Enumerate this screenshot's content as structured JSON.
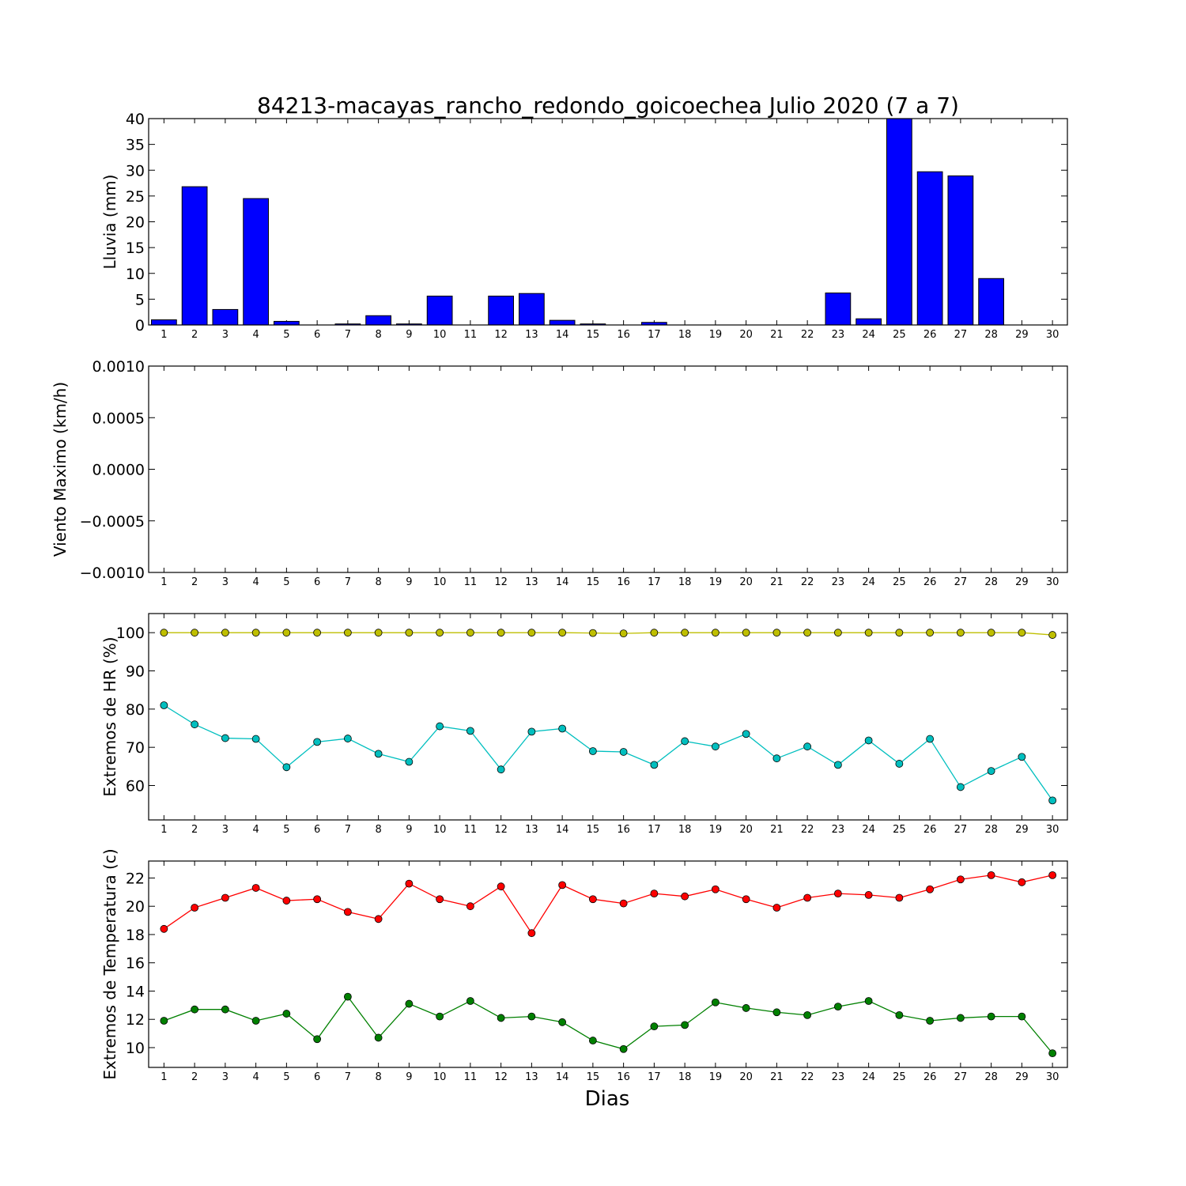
{
  "figure_title": "84213-macayas_rancho_redondo_goicoechea Julio 2020  (7 a 7)",
  "xlabel": "Dias",
  "colors": {
    "rain": "#0000ff",
    "hr_max": "#bfbf00",
    "hr_min": "#00bfbf",
    "temp_max": "#ff0000",
    "temp_min": "#008000"
  },
  "chart_data": [
    {
      "type": "bar",
      "ylabel": "Lluvia (mm)",
      "categories": [
        "1",
        "2",
        "3",
        "4",
        "5",
        "6",
        "7",
        "8",
        "9",
        "10",
        "11",
        "12",
        "13",
        "14",
        "15",
        "16",
        "17",
        "18",
        "19",
        "20",
        "21",
        "22",
        "23",
        "24",
        "25",
        "26",
        "27",
        "28",
        "29",
        "30"
      ],
      "ylim": [
        0,
        40
      ],
      "yticks": [
        "0",
        "5",
        "10",
        "15",
        "20",
        "25",
        "30",
        "35",
        "40"
      ],
      "series": [
        {
          "values": [
            1.0,
            26.8,
            3.0,
            24.5,
            0.7,
            0.0,
            0.2,
            1.8,
            0.2,
            5.6,
            0.0,
            5.6,
            6.1,
            0.9,
            0.2,
            0.0,
            0.5,
            0.0,
            0.0,
            0.0,
            0.0,
            0.0,
            6.2,
            1.2,
            40.0,
            29.7,
            28.9,
            9.0,
            0.0,
            0.0
          ]
        }
      ]
    },
    {
      "type": "line",
      "ylabel": "Viento Maximo (km/h)",
      "categories": [
        "1",
        "2",
        "3",
        "4",
        "5",
        "6",
        "7",
        "8",
        "9",
        "10",
        "11",
        "12",
        "13",
        "14",
        "15",
        "16",
        "17",
        "18",
        "19",
        "20",
        "21",
        "22",
        "23",
        "24",
        "25",
        "26",
        "27",
        "28",
        "29",
        "30"
      ],
      "ylim": [
        -0.001,
        0.001
      ],
      "yticks": [
        "0.0010",
        "0.0005",
        "0.0000",
        "−0.0005",
        "−0.0010"
      ],
      "series": []
    },
    {
      "type": "line",
      "ylabel": "Extremos de HR (%)",
      "categories": [
        "1",
        "2",
        "3",
        "4",
        "5",
        "6",
        "7",
        "8",
        "9",
        "10",
        "11",
        "12",
        "13",
        "14",
        "15",
        "16",
        "17",
        "18",
        "19",
        "20",
        "21",
        "22",
        "23",
        "24",
        "25",
        "26",
        "27",
        "28",
        "29",
        "30"
      ],
      "ylim": [
        51,
        105
      ],
      "yticks": [
        "60",
        "70",
        "80",
        "90",
        "100"
      ],
      "series": [
        {
          "values": [
            100,
            100,
            100,
            100,
            100,
            100,
            100,
            100,
            100,
            100,
            100,
            100,
            100,
            100,
            99.9,
            99.8,
            100,
            100,
            100,
            100,
            100,
            100,
            100,
            100,
            100,
            100,
            100,
            100,
            100,
            99.4
          ]
        },
        {
          "values": [
            81.0,
            76.0,
            72.4,
            72.2,
            64.8,
            71.4,
            72.3,
            68.3,
            66.2,
            75.5,
            74.3,
            64.2,
            74.1,
            74.9,
            69.0,
            68.8,
            65.4,
            71.6,
            70.2,
            73.5,
            67.1,
            70.2,
            65.4,
            71.8,
            65.7,
            72.2,
            59.6,
            63.8,
            67.5,
            56.1
          ]
        }
      ]
    },
    {
      "type": "line",
      "ylabel": "Extremos de Temperatura (c)",
      "categories": [
        "1",
        "2",
        "3",
        "4",
        "5",
        "6",
        "7",
        "8",
        "9",
        "10",
        "11",
        "12",
        "13",
        "14",
        "15",
        "16",
        "17",
        "18",
        "19",
        "20",
        "21",
        "22",
        "23",
        "24",
        "25",
        "26",
        "27",
        "28",
        "29",
        "30"
      ],
      "ylim": [
        8.6,
        23.2
      ],
      "yticks": [
        "10",
        "12",
        "14",
        "16",
        "18",
        "20",
        "22"
      ],
      "series": [
        {
          "values": [
            18.4,
            19.9,
            20.6,
            21.3,
            20.4,
            20.5,
            19.6,
            19.1,
            21.6,
            20.5,
            20.0,
            21.4,
            18.1,
            21.5,
            20.5,
            20.2,
            20.9,
            20.7,
            21.2,
            20.5,
            19.9,
            20.6,
            20.9,
            20.8,
            20.6,
            21.2,
            21.9,
            22.2,
            21.7,
            22.2
          ]
        },
        {
          "values": [
            11.9,
            12.7,
            12.7,
            11.9,
            12.4,
            10.6,
            13.6,
            10.7,
            13.1,
            12.2,
            13.3,
            12.1,
            12.2,
            11.8,
            10.5,
            9.9,
            11.5,
            11.6,
            13.2,
            12.8,
            12.5,
            12.3,
            12.9,
            13.3,
            12.3,
            11.9,
            12.1,
            12.2,
            12.2,
            9.6
          ]
        }
      ]
    }
  ]
}
